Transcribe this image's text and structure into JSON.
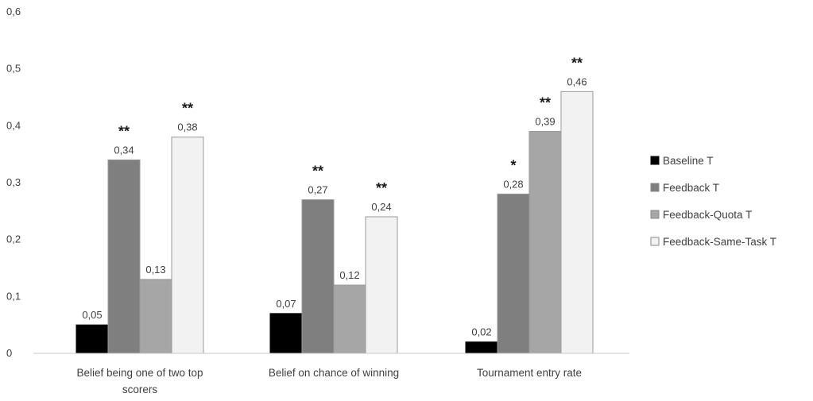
{
  "chart_data": {
    "type": "bar",
    "title": "",
    "xlabel": "",
    "ylabel": "",
    "ylim": [
      0,
      0.6
    ],
    "yticks": [
      "0",
      "0,1",
      "0,2",
      "0,3",
      "0,4",
      "0,5",
      "0,6"
    ],
    "grid": false,
    "legend_position": "right",
    "categories": [
      [
        "Belief being one of two top",
        "scorers"
      ],
      [
        "Belief on chance of winning"
      ],
      [
        "Tournament entry rate"
      ]
    ],
    "series": [
      {
        "name": "Baseline T",
        "color": "#000000",
        "values": [
          0.05,
          0.07,
          0.02
        ],
        "labels": [
          "0,05",
          "0,07",
          "0,02"
        ],
        "significance": [
          "",
          "",
          ""
        ]
      },
      {
        "name": "Feedback T",
        "color": "#7f7f7f",
        "values": [
          0.34,
          0.27,
          0.28
        ],
        "labels": [
          "0,34",
          "0,27",
          "0,28"
        ],
        "significance": [
          "**",
          "**",
          "*"
        ]
      },
      {
        "name": "Feedback-Quota T",
        "color": "#a6a6a6",
        "values": [
          0.13,
          0.12,
          0.39
        ],
        "labels": [
          "0,13",
          "0,12",
          "0,39"
        ],
        "significance": [
          "",
          "",
          "**"
        ]
      },
      {
        "name": "Feedback-Same-Task T",
        "color": "#f2f2f2",
        "values": [
          0.38,
          0.24,
          0.46
        ],
        "labels": [
          "0,38",
          "0,24",
          "0,46"
        ],
        "significance": [
          "**",
          "**",
          "**"
        ]
      }
    ]
  }
}
